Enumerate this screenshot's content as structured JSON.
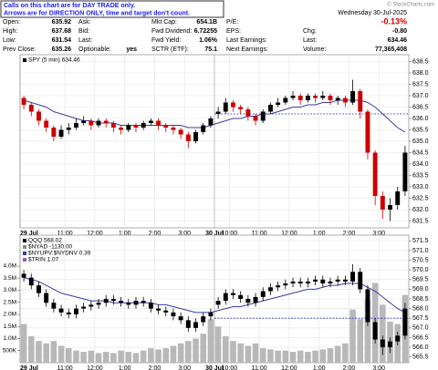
{
  "notice": [
    "Calls on this chart are for DAY TRADE only.",
    "Arrows are for DIRECTION ONLY, time and target don't count."
  ],
  "quote": {
    "rows": [
      [
        {
          "label": "Open:",
          "value": "635.92"
        },
        {
          "label": "Ask:"
        },
        {
          "label": "Mkt Cap:",
          "value": "654.1B"
        },
        {
          "label": "P/E:"
        }
      ],
      [
        {
          "label": "High:",
          "value": "637.68"
        },
        {
          "label": "Bid:"
        },
        {
          "label": "Fwd Dividend:",
          "value": "6.72255"
        },
        {
          "label": "EPS:"
        }
      ],
      [
        {
          "label": "Low:",
          "value": "631.54"
        },
        {
          "label": "Last:"
        },
        {
          "label": "Fwd Yield:",
          "value": "1.06%"
        },
        {
          "label": "Last Earnings:"
        }
      ],
      [
        {
          "label": "Prev Close:",
          "value": "635.26"
        },
        {
          "label": "Optionable:",
          "value": "yes"
        },
        {
          "label": "SCTR (ETF):",
          "value": "75.1"
        },
        {
          "label": "Next Earnings:"
        }
      ]
    ],
    "date": "Wednesday 30-Jul-2025",
    "change_pct": "-0.13%",
    "stats": [
      {
        "label": "Chg:",
        "value": "-0.80"
      },
      {
        "label": "Last:",
        "value": "634.46"
      },
      {
        "label": "Volume:",
        "value": "77,365,408"
      }
    ]
  },
  "copyright": "© StockCharts.com",
  "chart_data": [
    {
      "type": "candlestick",
      "legend": [
        "SPY (5 min) 634.46"
      ],
      "legend_colors": [
        "#000000"
      ],
      "categories": [
        "29 Jul",
        null,
        null,
        null,
        null,
        null,
        "11:00",
        null,
        null,
        null,
        "12:00",
        null,
        null,
        null,
        "1:00",
        null,
        null,
        null,
        "2:00",
        null,
        null,
        null,
        "3:00",
        null,
        null,
        null,
        "30 Jul",
        null,
        "10:00",
        null,
        null,
        null,
        "11:00",
        null,
        null,
        null,
        "12:00",
        null,
        null,
        null,
        "1:00",
        null,
        null,
        null,
        "2:00",
        null,
        null,
        null,
        "3:00",
        null,
        null,
        null
      ],
      "open": [
        636.9,
        636.6,
        636.3,
        635.9,
        635.6,
        635.2,
        635.5,
        635.6,
        635.8,
        635.9,
        635.7,
        635.9,
        635.8,
        635.6,
        635.5,
        635.7,
        635.6,
        635.8,
        635.9,
        635.7,
        635.6,
        635.5,
        635.3,
        635.0,
        635.4,
        635.7,
        636.2,
        636.3,
        636.7,
        636.5,
        636.4,
        636.1,
        635.9,
        636.3,
        636.6,
        636.7,
        636.9,
        637.0,
        636.8,
        637.0,
        636.9,
        637.0,
        636.8,
        636.9,
        636.7,
        637.2,
        636.3,
        634.5,
        632.6,
        632.0,
        632.2,
        632.8
      ],
      "high": [
        637.0,
        636.7,
        636.4,
        636.0,
        635.7,
        635.7,
        635.8,
        636.0,
        636.1,
        636.0,
        636.0,
        636.0,
        635.9,
        635.7,
        635.8,
        635.8,
        635.9,
        636.0,
        636.0,
        635.8,
        635.7,
        635.6,
        635.4,
        635.5,
        635.8,
        636.1,
        636.5,
        636.9,
        636.8,
        636.6,
        636.5,
        636.2,
        636.4,
        636.7,
        636.9,
        637.0,
        637.2,
        637.1,
        637.1,
        637.1,
        637.2,
        637.1,
        637.0,
        637.0,
        637.7,
        637.3,
        636.4,
        634.6,
        632.8,
        632.5,
        633.0,
        634.8
      ],
      "low": [
        636.4,
        636.1,
        635.7,
        635.4,
        635.0,
        635.1,
        635.3,
        635.5,
        635.7,
        635.5,
        635.6,
        635.6,
        635.4,
        635.3,
        635.4,
        635.4,
        635.5,
        635.7,
        635.5,
        635.4,
        635.3,
        635.1,
        634.7,
        634.9,
        635.3,
        635.6,
        636.0,
        636.2,
        636.3,
        636.2,
        635.9,
        635.7,
        635.8,
        636.2,
        636.5,
        636.6,
        636.8,
        636.6,
        636.7,
        636.7,
        636.8,
        636.6,
        636.6,
        636.5,
        636.6,
        636.0,
        634.2,
        632.2,
        631.6,
        631.5,
        632.0,
        632.6
      ],
      "close": [
        636.6,
        636.3,
        635.9,
        635.6,
        635.2,
        635.5,
        635.6,
        635.8,
        635.9,
        635.7,
        635.9,
        635.8,
        635.6,
        635.5,
        635.7,
        635.6,
        635.8,
        635.9,
        635.7,
        635.6,
        635.5,
        635.3,
        635.0,
        635.4,
        635.7,
        636.0,
        636.3,
        636.7,
        636.5,
        636.4,
        636.1,
        635.9,
        636.3,
        636.6,
        636.7,
        636.9,
        637.0,
        636.8,
        637.0,
        636.9,
        637.0,
        636.8,
        636.9,
        636.7,
        637.2,
        636.3,
        634.5,
        632.6,
        632.0,
        632.2,
        632.8,
        634.5
      ],
      "up_color": "#000000",
      "down_color": "#cc0000",
      "ma": {
        "color": "#3b3ba0",
        "values": [
          636.8,
          636.7,
          636.6,
          636.5,
          636.3,
          636.2,
          636.1,
          636.0,
          635.9,
          635.9,
          635.8,
          635.8,
          635.8,
          635.7,
          635.7,
          635.7,
          635.7,
          635.7,
          635.7,
          635.7,
          635.7,
          635.7,
          635.6,
          635.6,
          635.6,
          635.7,
          635.8,
          635.9,
          636.0,
          636.0,
          636.1,
          636.1,
          636.2,
          636.2,
          636.3,
          636.4,
          636.5,
          636.5,
          636.6,
          636.6,
          636.7,
          636.7,
          636.8,
          636.8,
          636.8,
          636.8,
          636.7,
          636.5,
          636.2,
          635.9,
          635.6,
          635.4
        ]
      },
      "reference_line": {
        "value": 636.2,
        "color": "#3333cc"
      },
      "ylim": [
        631.2,
        638.8
      ],
      "yticks": [
        631.5,
        {
          "value": 632,
          "label": "632.0"
        },
        632.5,
        {
          "value": 633,
          "label": "633.0"
        },
        633.5,
        {
          "value": 634,
          "label": "634.0"
        },
        634.5,
        {
          "value": 635,
          "label": "635.0"
        },
        635.5,
        {
          "value": 636,
          "label": "636.0"
        },
        636.5,
        {
          "value": 637,
          "label": "637.0"
        },
        637.5,
        {
          "value": 638,
          "label": "638.0"
        },
        638.5
      ],
      "grid": true
    },
    {
      "type": "candlestick",
      "legend": [
        "QQQ 568.02",
        "$NYAD -1130.00",
        "$NYUPV:$NYDNV 0.39",
        "$TRIN 1.07"
      ],
      "legend_colors": [
        "#000000",
        "#888888",
        "#3b3ba0",
        "#9b59b6"
      ],
      "categories": [
        "29 Jul",
        null,
        null,
        null,
        null,
        null,
        "11:00",
        null,
        null,
        null,
        "12:00",
        null,
        null,
        null,
        "1:00",
        null,
        null,
        null,
        "2:00",
        null,
        null,
        null,
        "3:00",
        null,
        null,
        null,
        "30 Jul",
        null,
        "10:00",
        null,
        null,
        null,
        "11:00",
        null,
        null,
        null,
        "12:00",
        null,
        null,
        null,
        "1:00",
        null,
        null,
        null,
        "2:00",
        null,
        null,
        null,
        "3:00",
        null,
        null,
        null
      ],
      "open": [
        569.8,
        569.6,
        569.2,
        568.8,
        568.3,
        568.0,
        567.8,
        567.7,
        568.0,
        568.1,
        568.2,
        568.3,
        568.5,
        568.4,
        568.3,
        568.2,
        568.4,
        568.3,
        568.0,
        567.9,
        567.8,
        567.6,
        567.4,
        567.0,
        567.3,
        567.6,
        568.2,
        568.4,
        568.8,
        568.7,
        568.5,
        568.3,
        568.6,
        568.9,
        569.1,
        569.2,
        569.3,
        569.4,
        569.3,
        569.4,
        569.5,
        569.3,
        569.4,
        569.5,
        569.4,
        569.9,
        569.0,
        567.3,
        566.4,
        566.0,
        566.3,
        566.6
      ],
      "high": [
        570.0,
        569.8,
        569.4,
        569.0,
        568.5,
        568.2,
        568.0,
        568.2,
        568.3,
        568.4,
        568.5,
        568.7,
        568.7,
        568.6,
        568.5,
        568.6,
        568.6,
        568.5,
        568.2,
        568.1,
        568.0,
        567.8,
        567.6,
        567.5,
        567.8,
        568.0,
        568.6,
        569.0,
        569.0,
        568.9,
        568.7,
        568.8,
        569.1,
        569.3,
        569.4,
        569.5,
        569.6,
        569.6,
        569.6,
        569.7,
        569.7,
        569.6,
        569.7,
        569.7,
        570.3,
        570.1,
        569.2,
        567.5,
        566.6,
        566.5,
        566.8,
        568.3
      ],
      "low": [
        569.4,
        569.0,
        568.6,
        568.1,
        567.8,
        567.6,
        567.5,
        567.5,
        567.8,
        567.9,
        568.0,
        568.1,
        568.2,
        568.1,
        568.0,
        568.0,
        568.1,
        567.8,
        567.7,
        567.6,
        567.4,
        567.2,
        566.8,
        566.8,
        567.1,
        567.4,
        568.0,
        568.2,
        568.5,
        568.3,
        568.1,
        568.1,
        568.4,
        568.7,
        568.9,
        569.0,
        569.1,
        569.1,
        569.1,
        569.2,
        569.1,
        569.1,
        569.2,
        569.2,
        569.2,
        568.8,
        567.1,
        566.2,
        565.6,
        565.7,
        566.1,
        566.4
      ],
      "close": [
        569.6,
        569.2,
        568.8,
        568.3,
        568.0,
        567.8,
        567.7,
        568.0,
        568.1,
        568.2,
        568.3,
        568.5,
        568.4,
        568.3,
        568.2,
        568.4,
        568.3,
        568.0,
        567.9,
        567.8,
        567.6,
        567.4,
        567.0,
        567.3,
        567.6,
        567.8,
        568.4,
        568.8,
        568.7,
        568.5,
        568.3,
        568.6,
        568.9,
        569.1,
        569.2,
        569.3,
        569.4,
        569.3,
        569.4,
        569.5,
        569.3,
        569.4,
        569.5,
        569.4,
        569.9,
        569.0,
        567.3,
        566.4,
        566.0,
        566.3,
        566.6,
        568.0
      ],
      "up_color": "#000000",
      "down_color": "#000000",
      "ma": {
        "color": "#3b3ba0",
        "values": [
          569.6,
          569.5,
          569.4,
          569.2,
          569.0,
          568.8,
          568.7,
          568.6,
          568.5,
          568.4,
          568.4,
          568.4,
          568.3,
          568.3,
          568.3,
          568.3,
          568.3,
          568.3,
          568.2,
          568.2,
          568.1,
          568.0,
          567.9,
          567.8,
          567.8,
          567.8,
          567.9,
          568.0,
          568.1,
          568.1,
          568.2,
          568.3,
          568.4,
          568.5,
          568.6,
          568.7,
          568.8,
          568.9,
          569.0,
          569.0,
          569.1,
          569.2,
          569.2,
          569.3,
          569.3,
          569.3,
          569.1,
          568.9,
          568.6,
          568.3,
          568.0,
          567.8
        ]
      },
      "reference_line": {
        "value": 567.5,
        "color": "#3333cc"
      },
      "ylim": [
        565.2,
        571.8
      ],
      "yticks": [
        565.5,
        {
          "value": 566,
          "label": "566.0"
        },
        566.5,
        {
          "value": 567,
          "label": "567.0"
        },
        567.5,
        {
          "value": 568,
          "label": "568.0"
        },
        568.5,
        {
          "value": 569,
          "label": "569.0"
        },
        569.5,
        {
          "value": 570,
          "label": "570.0"
        },
        570.5,
        {
          "value": 571,
          "label": "571.0"
        },
        571.5
      ],
      "grid": true,
      "volume": {
        "color": "#b8b8b8",
        "ylim": [
          0,
          5280000
        ],
        "yticks": [
          {
            "value": 500000,
            "label": "500K"
          },
          {
            "value": 1000000,
            "label": "1.0M"
          },
          {
            "value": 1500000,
            "label": "1.5M"
          },
          {
            "value": 2000000,
            "label": "2.0M"
          },
          {
            "value": 2500000,
            "label": "2.5M"
          },
          {
            "value": 3000000,
            "label": "3.0M"
          },
          {
            "value": 3500000,
            "label": "3.5M"
          },
          {
            "value": 4000000,
            "label": "4.0M"
          }
        ],
        "values": [
          1600000,
          1100000,
          900000,
          800000,
          900000,
          700000,
          600000,
          500000,
          450000,
          500000,
          400000,
          450000,
          400000,
          500000,
          450000,
          400000,
          500000,
          600000,
          550000,
          600000,
          700000,
          800000,
          900000,
          1000000,
          1200000,
          1800000,
          1500000,
          1100000,
          900000,
          800000,
          700000,
          800000,
          600000,
          550000,
          500000,
          500000,
          450000,
          500000,
          450000,
          500000,
          550000,
          600000,
          700000,
          800000,
          2200000,
          1800000,
          2600000,
          3300000,
          2400000,
          1700000,
          1600000,
          2800000
        ]
      }
    }
  ]
}
